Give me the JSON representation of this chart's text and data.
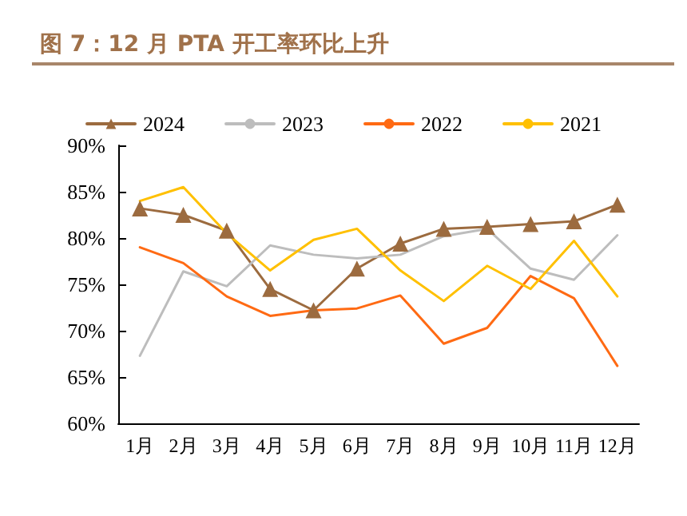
{
  "chart_data": {
    "type": "line",
    "title": "图 7：12 月 PTA 开工率环比上升",
    "categories": [
      "1月",
      "2月",
      "3月",
      "4月",
      "5月",
      "6月",
      "7月",
      "8月",
      "9月",
      "10月",
      "11月",
      "12月"
    ],
    "series": [
      {
        "name": "2024",
        "color": "#9c6b3f",
        "marker": "triangle",
        "values": [
          83.2,
          82.5,
          80.8,
          74.5,
          72.2,
          76.7,
          79.4,
          81.0,
          81.2,
          81.5,
          81.8,
          83.6
        ]
      },
      {
        "name": "2023",
        "color": "#bdbdbd",
        "marker": "none",
        "values": [
          67.3,
          76.4,
          74.8,
          79.2,
          78.2,
          77.8,
          78.2,
          80.2,
          81.0,
          76.7,
          75.5,
          80.3
        ]
      },
      {
        "name": "2022",
        "color": "#ff6a13",
        "marker": "none",
        "values": [
          79.0,
          77.3,
          73.7,
          71.6,
          72.2,
          72.4,
          73.8,
          68.6,
          70.3,
          75.9,
          73.5,
          66.2
        ]
      },
      {
        "name": "2021",
        "color": "#ffc000",
        "marker": "none",
        "values": [
          84.0,
          85.5,
          80.5,
          76.5,
          79.8,
          81.0,
          76.5,
          73.2,
          77.0,
          74.5,
          79.7,
          73.7
        ]
      }
    ],
    "ylim": [
      60,
      90
    ],
    "yticks": [
      {
        "value": 60,
        "label": "60%"
      },
      {
        "value": 65,
        "label": "65%"
      },
      {
        "value": 70,
        "label": "70%"
      },
      {
        "value": 75,
        "label": "75%"
      },
      {
        "value": 80,
        "label": "80%"
      },
      {
        "value": 85,
        "label": "85%"
      },
      {
        "value": 90,
        "label": "90%"
      }
    ],
    "grid": false,
    "legend": "top",
    "line_style": "solid"
  }
}
